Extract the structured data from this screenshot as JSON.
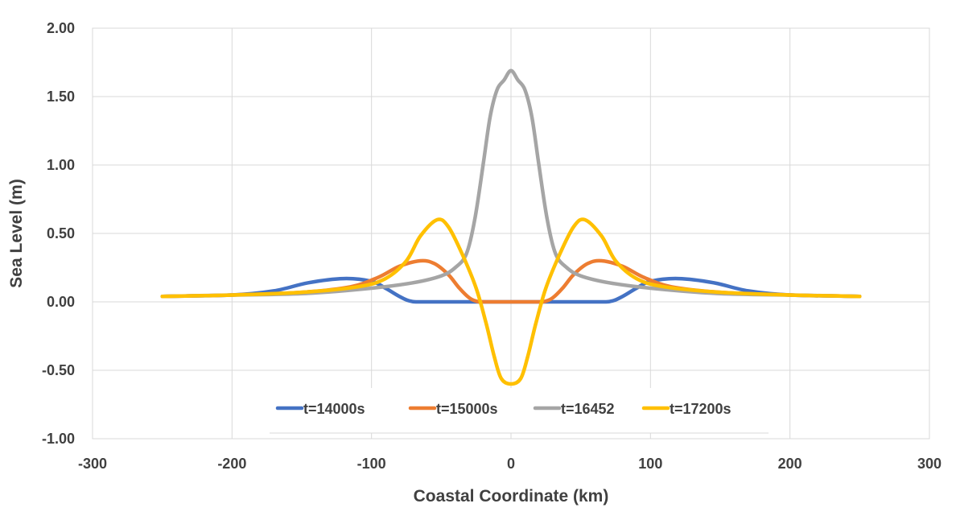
{
  "chart_data": {
    "type": "line",
    "title": "",
    "xlabel": "Coastal Coordinate (km)",
    "ylabel": "Sea Level (m)",
    "xlim": [
      -300,
      300
    ],
    "ylim": [
      -1.0,
      2.0
    ],
    "x_ticks": [
      -300,
      -200,
      -100,
      0,
      100,
      200,
      300
    ],
    "y_ticks": [
      -1.0,
      -0.5,
      0.0,
      0.5,
      1.0,
      1.5,
      2.0
    ],
    "x_tick_labels": [
      "-300",
      "-200",
      "-100",
      "0",
      "100",
      "200",
      "300"
    ],
    "y_tick_labels": [
      "-1.00",
      "-0.50",
      "0.00",
      "0.50",
      "1.00",
      "1.50",
      "2.00"
    ],
    "grid": true,
    "legend_position": "bottom-center inside plot",
    "series": [
      {
        "name": "t=14000s",
        "color": "#4472C4",
        "points": [
          [
            -250,
            0.04
          ],
          [
            -200,
            0.05
          ],
          [
            -170,
            0.08
          ],
          [
            -145,
            0.14
          ],
          [
            -120,
            0.17
          ],
          [
            -100,
            0.15
          ],
          [
            -90,
            0.1
          ],
          [
            -80,
            0.04
          ],
          [
            -72,
            0.005
          ],
          [
            -60,
            0.0
          ],
          [
            0,
            0.0
          ],
          [
            60,
            0.0
          ],
          [
            72,
            0.005
          ],
          [
            80,
            0.04
          ],
          [
            90,
            0.1
          ],
          [
            100,
            0.15
          ],
          [
            120,
            0.17
          ],
          [
            145,
            0.14
          ],
          [
            170,
            0.08
          ],
          [
            200,
            0.05
          ],
          [
            250,
            0.04
          ]
        ]
      },
      {
        "name": "t=15000s",
        "color": "#ED7D31",
        "points": [
          [
            -250,
            0.04
          ],
          [
            -200,
            0.05
          ],
          [
            -150,
            0.07
          ],
          [
            -115,
            0.11
          ],
          [
            -95,
            0.18
          ],
          [
            -80,
            0.26
          ],
          [
            -65,
            0.3
          ],
          [
            -55,
            0.28
          ],
          [
            -45,
            0.2
          ],
          [
            -37,
            0.1
          ],
          [
            -30,
            0.03
          ],
          [
            -25,
            0.005
          ],
          [
            -20,
            0.0
          ],
          [
            0,
            0.0
          ],
          [
            20,
            0.0
          ],
          [
            25,
            0.005
          ],
          [
            30,
            0.03
          ],
          [
            37,
            0.1
          ],
          [
            45,
            0.2
          ],
          [
            55,
            0.28
          ],
          [
            65,
            0.3
          ],
          [
            80,
            0.26
          ],
          [
            95,
            0.18
          ],
          [
            115,
            0.11
          ],
          [
            150,
            0.07
          ],
          [
            200,
            0.05
          ],
          [
            250,
            0.04
          ]
        ]
      },
      {
        "name": "t=16452",
        "color": "#A5A5A5",
        "points": [
          [
            -250,
            0.04
          ],
          [
            -200,
            0.05
          ],
          [
            -150,
            0.06
          ],
          [
            -100,
            0.1
          ],
          [
            -70,
            0.14
          ],
          [
            -50,
            0.19
          ],
          [
            -40,
            0.25
          ],
          [
            -32,
            0.35
          ],
          [
            -26,
            0.6
          ],
          [
            -20,
            1.0
          ],
          [
            -15,
            1.35
          ],
          [
            -10,
            1.55
          ],
          [
            -5,
            1.62
          ],
          [
            0,
            1.69
          ],
          [
            5,
            1.62
          ],
          [
            10,
            1.55
          ],
          [
            15,
            1.35
          ],
          [
            20,
            1.0
          ],
          [
            26,
            0.6
          ],
          [
            32,
            0.35
          ],
          [
            40,
            0.25
          ],
          [
            50,
            0.19
          ],
          [
            70,
            0.14
          ],
          [
            100,
            0.1
          ],
          [
            150,
            0.06
          ],
          [
            200,
            0.05
          ],
          [
            250,
            0.04
          ]
        ]
      },
      {
        "name": "t=17200s",
        "color": "#FFC000",
        "points": [
          [
            -250,
            0.04
          ],
          [
            -200,
            0.05
          ],
          [
            -150,
            0.07
          ],
          [
            -110,
            0.11
          ],
          [
            -90,
            0.17
          ],
          [
            -75,
            0.3
          ],
          [
            -65,
            0.48
          ],
          [
            -53,
            0.6
          ],
          [
            -45,
            0.55
          ],
          [
            -35,
            0.35
          ],
          [
            -25,
            0.1
          ],
          [
            -18,
            -0.15
          ],
          [
            -12,
            -0.4
          ],
          [
            -7,
            -0.56
          ],
          [
            0,
            -0.6
          ],
          [
            7,
            -0.56
          ],
          [
            12,
            -0.4
          ],
          [
            18,
            -0.15
          ],
          [
            25,
            0.1
          ],
          [
            35,
            0.35
          ],
          [
            45,
            0.55
          ],
          [
            53,
            0.6
          ],
          [
            65,
            0.48
          ],
          [
            75,
            0.3
          ],
          [
            90,
            0.17
          ],
          [
            110,
            0.11
          ],
          [
            150,
            0.07
          ],
          [
            200,
            0.05
          ],
          [
            250,
            0.04
          ]
        ]
      }
    ]
  }
}
